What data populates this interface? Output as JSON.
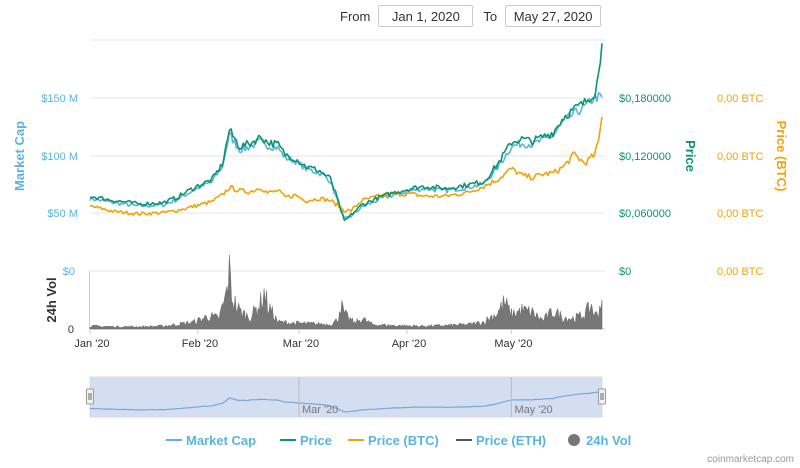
{
  "range": {
    "from_label": "From",
    "from_value": "Jan 1, 2020",
    "to_label": "To",
    "to_value": "May 27, 2020"
  },
  "colors": {
    "market_cap": "#5ab4e0",
    "price": "#0d9470",
    "price_btc": "#f0a30a",
    "price_eth": "#555555",
    "volume": "#777777",
    "navigator_fill": "#cdd9ee",
    "navigator_line": "#7aa7dd"
  },
  "credit": "coinmarketcap.com",
  "chart_data": {
    "type": "line",
    "x_start": "2020-01-01",
    "x_end": "2020-05-27",
    "xticks": [
      {
        "date": "2020-01-01",
        "label": "Jan '20"
      },
      {
        "date": "2020-02-01",
        "label": "Feb '20"
      },
      {
        "date": "2020-03-01",
        "label": "Mar '20"
      },
      {
        "date": "2020-04-01",
        "label": "Apr '20"
      },
      {
        "date": "2020-05-01",
        "label": "May '20"
      }
    ],
    "axes": {
      "market_cap": {
        "label": "Market Cap",
        "ylim": [
          0,
          175
        ],
        "ticks": [
          {
            "v": 50,
            "label": "$50 M"
          },
          {
            "v": 100,
            "label": "$100 M"
          },
          {
            "v": 150,
            "label": "$150 M"
          }
        ]
      },
      "price": {
        "label": "Price",
        "ylim": [
          0,
          0.21
        ],
        "ticks": [
          {
            "v": 0.06,
            "label": "$0,060000"
          },
          {
            "v": 0.12,
            "label": "$0,120000"
          },
          {
            "v": 0.18,
            "label": "$0,180000"
          }
        ]
      },
      "price_btc": {
        "label": "Price (BTC)",
        "ticks": [
          "0,00 BTC",
          "0,00 BTC",
          "0,00 BTC"
        ]
      },
      "volume": {
        "label": "24h Vol",
        "ylim": [
          0,
          1
        ],
        "ticks": [
          {
            "v": 0,
            "label": "0"
          },
          {
            "v": 1,
            "label": "$0"
          }
        ]
      },
      "volume_price": {
        "ticks": [
          "$0"
        ]
      },
      "volume_btc": {
        "ticks": [
          "0,00 BTC"
        ]
      }
    },
    "navigator_ticks": [
      {
        "date": "2020-03-01",
        "label": "Mar '20"
      },
      {
        "date": "2020-05-01",
        "label": "May '20"
      }
    ],
    "series": [
      {
        "name": "Market Cap",
        "axis": "price",
        "points": [
          [
            "2020-01-01",
            0.066
          ],
          [
            "2020-01-08",
            0.062
          ],
          [
            "2020-01-15",
            0.059
          ],
          [
            "2020-01-22",
            0.06
          ],
          [
            "2020-01-26",
            0.065
          ],
          [
            "2020-01-31",
            0.074
          ],
          [
            "2020-02-05",
            0.081
          ],
          [
            "2020-02-08",
            0.095
          ],
          [
            "2020-02-10",
            0.124
          ],
          [
            "2020-02-13",
            0.11
          ],
          [
            "2020-02-16",
            0.113
          ],
          [
            "2020-02-19",
            0.118
          ],
          [
            "2020-02-21",
            0.114
          ],
          [
            "2020-02-24",
            0.112
          ],
          [
            "2020-02-26",
            0.103
          ],
          [
            "2020-02-29",
            0.1
          ],
          [
            "2020-03-03",
            0.093
          ],
          [
            "2020-03-07",
            0.089
          ],
          [
            "2020-03-10",
            0.082
          ],
          [
            "2020-03-12",
            0.064
          ],
          [
            "2020-03-14",
            0.047
          ],
          [
            "2020-03-16",
            0.05
          ],
          [
            "2020-03-19",
            0.058
          ],
          [
            "2020-03-24",
            0.065
          ],
          [
            "2020-03-28",
            0.069
          ],
          [
            "2020-04-02",
            0.073
          ],
          [
            "2020-04-06",
            0.075
          ],
          [
            "2020-04-12",
            0.073
          ],
          [
            "2020-04-18",
            0.076
          ],
          [
            "2020-04-23",
            0.079
          ],
          [
            "2020-04-27",
            0.094
          ],
          [
            "2020-05-01",
            0.113
          ],
          [
            "2020-05-04",
            0.116
          ],
          [
            "2020-05-07",
            0.115
          ],
          [
            "2020-05-10",
            0.119
          ],
          [
            "2020-05-13",
            0.123
          ],
          [
            "2020-05-16",
            0.136
          ],
          [
            "2020-05-19",
            0.143
          ],
          [
            "2020-05-22",
            0.149
          ],
          [
            "2020-05-25",
            0.158
          ],
          [
            "2020-05-27",
            0.158
          ]
        ]
      },
      {
        "name": "Price",
        "axis": "price",
        "points": [
          [
            "2020-01-01",
            0.068
          ],
          [
            "2020-01-08",
            0.064
          ],
          [
            "2020-01-15",
            0.061
          ],
          [
            "2020-01-22",
            0.062
          ],
          [
            "2020-01-26",
            0.067
          ],
          [
            "2020-01-31",
            0.076
          ],
          [
            "2020-02-05",
            0.083
          ],
          [
            "2020-02-08",
            0.097
          ],
          [
            "2020-02-10",
            0.128
          ],
          [
            "2020-02-13",
            0.113
          ],
          [
            "2020-02-16",
            0.116
          ],
          [
            "2020-02-19",
            0.122
          ],
          [
            "2020-02-21",
            0.117
          ],
          [
            "2020-02-24",
            0.115
          ],
          [
            "2020-02-26",
            0.106
          ],
          [
            "2020-02-29",
            0.102
          ],
          [
            "2020-03-03",
            0.095
          ],
          [
            "2020-03-07",
            0.091
          ],
          [
            "2020-03-10",
            0.084
          ],
          [
            "2020-03-12",
            0.066
          ],
          [
            "2020-03-14",
            0.045
          ],
          [
            "2020-03-16",
            0.051
          ],
          [
            "2020-03-19",
            0.06
          ],
          [
            "2020-03-24",
            0.067
          ],
          [
            "2020-03-28",
            0.071
          ],
          [
            "2020-04-02",
            0.075
          ],
          [
            "2020-04-06",
            0.077
          ],
          [
            "2020-04-12",
            0.075
          ],
          [
            "2020-04-18",
            0.078
          ],
          [
            "2020-04-23",
            0.081
          ],
          [
            "2020-04-27",
            0.097
          ],
          [
            "2020-05-01",
            0.117
          ],
          [
            "2020-05-04",
            0.12
          ],
          [
            "2020-05-07",
            0.118
          ],
          [
            "2020-05-10",
            0.122
          ],
          [
            "2020-05-13",
            0.126
          ],
          [
            "2020-05-16",
            0.14
          ],
          [
            "2020-05-19",
            0.147
          ],
          [
            "2020-05-22",
            0.153
          ],
          [
            "2020-05-25",
            0.163
          ],
          [
            "2020-05-26",
            0.178
          ],
          [
            "2020-05-27",
            0.207
          ]
        ]
      },
      {
        "name": "Price (BTC)",
        "axis": "price",
        "points": [
          [
            "2020-01-01",
            0.059
          ],
          [
            "2020-01-08",
            0.054
          ],
          [
            "2020-01-15",
            0.052
          ],
          [
            "2020-01-22",
            0.053
          ],
          [
            "2020-01-26",
            0.055
          ],
          [
            "2020-01-31",
            0.059
          ],
          [
            "2020-02-05",
            0.063
          ],
          [
            "2020-02-08",
            0.069
          ],
          [
            "2020-02-10",
            0.076
          ],
          [
            "2020-02-13",
            0.073
          ],
          [
            "2020-02-16",
            0.072
          ],
          [
            "2020-02-19",
            0.076
          ],
          [
            "2020-02-21",
            0.071
          ],
          [
            "2020-02-24",
            0.073
          ],
          [
            "2020-02-26",
            0.067
          ],
          [
            "2020-02-29",
            0.069
          ],
          [
            "2020-03-03",
            0.064
          ],
          [
            "2020-03-07",
            0.066
          ],
          [
            "2020-03-10",
            0.064
          ],
          [
            "2020-03-12",
            0.06
          ],
          [
            "2020-03-14",
            0.055
          ],
          [
            "2020-03-16",
            0.055
          ],
          [
            "2020-03-19",
            0.064
          ],
          [
            "2020-03-24",
            0.068
          ],
          [
            "2020-03-28",
            0.07
          ],
          [
            "2020-04-02",
            0.07
          ],
          [
            "2020-04-06",
            0.068
          ],
          [
            "2020-04-12",
            0.068
          ],
          [
            "2020-04-18",
            0.071
          ],
          [
            "2020-04-23",
            0.077
          ],
          [
            "2020-04-27",
            0.083
          ],
          [
            "2020-05-01",
            0.093
          ],
          [
            "2020-05-04",
            0.087
          ],
          [
            "2020-05-07",
            0.085
          ],
          [
            "2020-05-10",
            0.088
          ],
          [
            "2020-05-13",
            0.089
          ],
          [
            "2020-05-16",
            0.095
          ],
          [
            "2020-05-19",
            0.106
          ],
          [
            "2020-05-22",
            0.098
          ],
          [
            "2020-05-25",
            0.106
          ],
          [
            "2020-05-26",
            0.118
          ],
          [
            "2020-05-27",
            0.14
          ]
        ]
      },
      {
        "name": "Price (ETH)",
        "axis": "price",
        "points": []
      },
      {
        "name": "24h Vol",
        "axis": "volume",
        "type": "area",
        "points": [
          [
            "2020-01-01",
            0.05
          ],
          [
            "2020-01-08",
            0.04
          ],
          [
            "2020-01-15",
            0.04
          ],
          [
            "2020-01-22",
            0.05
          ],
          [
            "2020-01-26",
            0.08
          ],
          [
            "2020-01-31",
            0.12
          ],
          [
            "2020-02-04",
            0.22
          ],
          [
            "2020-02-07",
            0.18
          ],
          [
            "2020-02-09",
            0.55
          ],
          [
            "2020-02-10",
            0.95
          ],
          [
            "2020-02-11",
            0.5
          ],
          [
            "2020-02-13",
            0.3
          ],
          [
            "2020-02-16",
            0.2
          ],
          [
            "2020-02-19",
            0.45
          ],
          [
            "2020-02-20",
            0.62
          ],
          [
            "2020-02-21",
            0.4
          ],
          [
            "2020-02-24",
            0.12
          ],
          [
            "2020-02-29",
            0.1
          ],
          [
            "2020-03-05",
            0.09
          ],
          [
            "2020-03-10",
            0.08
          ],
          [
            "2020-03-12",
            0.15
          ],
          [
            "2020-03-13",
            0.42
          ],
          [
            "2020-03-14",
            0.25
          ],
          [
            "2020-03-17",
            0.1
          ],
          [
            "2020-03-19",
            0.18
          ],
          [
            "2020-03-22",
            0.08
          ],
          [
            "2020-03-28",
            0.06
          ],
          [
            "2020-04-05",
            0.05
          ],
          [
            "2020-04-12",
            0.06
          ],
          [
            "2020-04-19",
            0.08
          ],
          [
            "2020-04-23",
            0.12
          ],
          [
            "2020-04-27",
            0.28
          ],
          [
            "2020-04-29",
            0.45
          ],
          [
            "2020-05-01",
            0.25
          ],
          [
            "2020-05-04",
            0.32
          ],
          [
            "2020-05-07",
            0.28
          ],
          [
            "2020-05-10",
            0.15
          ],
          [
            "2020-05-13",
            0.3
          ],
          [
            "2020-05-16",
            0.2
          ],
          [
            "2020-05-19",
            0.18
          ],
          [
            "2020-05-22",
            0.25
          ],
          [
            "2020-05-24",
            0.4
          ],
          [
            "2020-05-25",
            0.22
          ],
          [
            "2020-05-26",
            0.3
          ],
          [
            "2020-05-27",
            0.5
          ]
        ]
      }
    ],
    "legend_placement": "bottom",
    "grid": true
  }
}
